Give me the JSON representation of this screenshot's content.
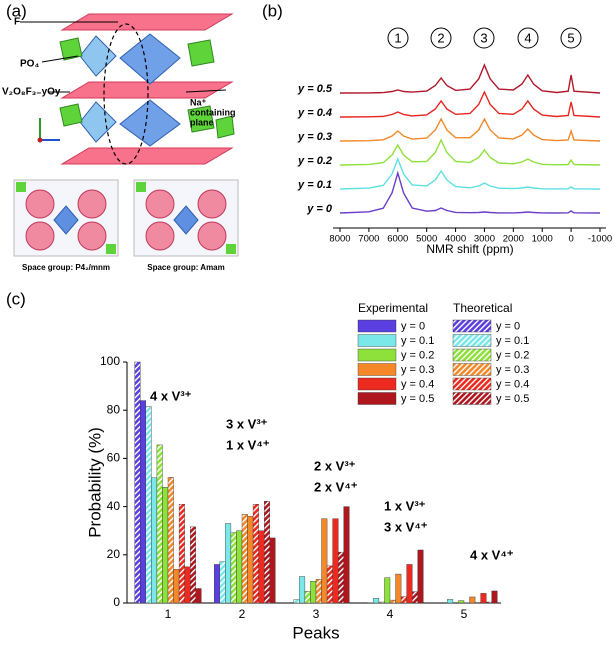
{
  "panel_a": {
    "panel_label": "(a)",
    "label_f": "F",
    "label_po4": "PO₄",
    "label_v": "V₂O₈F₃₋yOy",
    "label_na": [
      "Na⁺",
      "containing",
      "plane"
    ],
    "space_group_1": "Space group: P4₂/mnm",
    "space_group_2": "Space group: Amam"
  },
  "chart_data": [
    {
      "type": "line",
      "panel_label": "(b)",
      "xlabel": "NMR shift (ppm)",
      "peak_labels": [
        "1",
        "2",
        "3",
        "4",
        "5"
      ],
      "xlim": [
        8000,
        -1000
      ],
      "xticks": [
        8000,
        7000,
        6000,
        5000,
        4000,
        3000,
        2000,
        1000,
        0,
        -1000
      ],
      "x": [
        8000,
        7000,
        6500,
        6200,
        6000,
        5800,
        5500,
        5000,
        4700,
        4500,
        4300,
        4000,
        3500,
        3200,
        3000,
        2800,
        2500,
        2000,
        1700,
        1500,
        1300,
        1000,
        500,
        100,
        0,
        -100,
        -1000
      ],
      "series": [
        {
          "name": "y = 0",
          "color": "#6a3fc8",
          "values": [
            0,
            0.12,
            0.48,
            2.0,
            4.0,
            2.0,
            0.5,
            0.18,
            0.25,
            0.5,
            0.25,
            0.06,
            0.03,
            0.05,
            0.1,
            0.05,
            0.01,
            0.01,
            0.05,
            0.1,
            0.05,
            0.01,
            0,
            0.02,
            0.2,
            0.02,
            0
          ]
        },
        {
          "name": "y = 0.1",
          "color": "#5ee0e0",
          "values": [
            0,
            0.09,
            0.36,
            1.5,
            3.0,
            1.5,
            0.41,
            0.31,
            0.9,
            1.8,
            0.9,
            0.24,
            0.12,
            0.3,
            0.6,
            0.3,
            0.08,
            0.04,
            0.1,
            0.2,
            0.1,
            0.02,
            0.01,
            0.02,
            0.2,
            0.02,
            0
          ]
        },
        {
          "name": "y = 0.2",
          "color": "#8ee03a",
          "values": [
            0,
            0.06,
            0.24,
            1.0,
            2.0,
            1.0,
            0.32,
            0.36,
            1.25,
            2.5,
            1.25,
            0.35,
            0.26,
            0.75,
            1.5,
            0.75,
            0.2,
            0.12,
            0.3,
            0.6,
            0.3,
            0.07,
            0.02,
            0.05,
            0.5,
            0.05,
            0
          ]
        },
        {
          "name": "y = 0.3",
          "color": "#f0892a",
          "values": [
            0,
            0.03,
            0.12,
            0.5,
            1.0,
            0.5,
            0.19,
            0.29,
            1.1,
            2.2,
            1.1,
            0.33,
            0.33,
            1.1,
            2.2,
            1.1,
            0.3,
            0.21,
            0.6,
            1.2,
            0.6,
            0.14,
            0.04,
            0.1,
            1.0,
            0.1,
            0
          ]
        },
        {
          "name": "y = 0.4",
          "color": "#e8241f",
          "values": [
            0,
            0.02,
            0.06,
            0.25,
            0.5,
            0.25,
            0.11,
            0.21,
            0.8,
            1.6,
            0.8,
            0.27,
            0.35,
            1.25,
            2.5,
            1.25,
            0.35,
            0.27,
            0.8,
            1.6,
            0.8,
            0.19,
            0.05,
            0.15,
            1.5,
            0.15,
            0
          ]
        },
        {
          "name": "y = 0.5",
          "color": "#b2182b",
          "values": [
            0,
            0.01,
            0.04,
            0.15,
            0.3,
            0.15,
            0.09,
            0.19,
            0.75,
            1.5,
            0.75,
            0.26,
            0.39,
            1.4,
            2.8,
            1.4,
            0.39,
            0.3,
            0.9,
            1.8,
            0.9,
            0.22,
            0.05,
            0.18,
            1.8,
            0.18,
            0
          ]
        }
      ]
    },
    {
      "type": "bar",
      "panel_label": "(c)",
      "xlabel": "Peaks",
      "ylabel": "Probability (%)",
      "categories": [
        "1",
        "2",
        "3",
        "4",
        "5"
      ],
      "ylim": [
        0,
        100
      ],
      "yticks": [
        0,
        20,
        40,
        60,
        80,
        100
      ],
      "legend": "upper right",
      "legend_titles": [
        "Experimental",
        "Theoretical"
      ],
      "annotations": [
        [
          "4 x V³⁺"
        ],
        [
          "3 x V³⁺",
          "1 x V⁴⁺"
        ],
        [
          "2 x V³⁺",
          "2 x V⁴⁺"
        ],
        [
          "1 x V³⁺",
          "3 x V⁴⁺"
        ],
        [
          "4 x V⁴⁺"
        ]
      ],
      "series": [
        {
          "name": "y = 0",
          "color": "#5b3fe0",
          "hatch": false,
          "values": [
            84,
            16,
            0,
            0,
            0
          ]
        },
        {
          "name": "y = 0.1",
          "color": "#7ae8e8",
          "hatch": false,
          "values": [
            52,
            33,
            11,
            2,
            1.5
          ]
        },
        {
          "name": "y = 0.2",
          "color": "#8ee03a",
          "hatch": false,
          "values": [
            48,
            30,
            9,
            10.5,
            1
          ]
        },
        {
          "name": "y = 0.3",
          "color": "#f5892a",
          "hatch": false,
          "values": [
            14,
            36,
            35,
            12,
            2.5
          ]
        },
        {
          "name": "y = 0.4",
          "color": "#ec2a1f",
          "hatch": false,
          "values": [
            15,
            30,
            35,
            16,
            4
          ]
        },
        {
          "name": "y = 0.5",
          "color": "#b0161e",
          "hatch": false,
          "values": [
            6,
            27,
            40,
            22,
            5
          ]
        },
        {
          "name": "y = 0",
          "color": "#5b3fe0",
          "hatch": true,
          "values": [
            100,
            0,
            0,
            0,
            0
          ]
        },
        {
          "name": "y = 0.1",
          "color": "#7ae8e8",
          "hatch": true,
          "values": [
            81.5,
            17.1,
            1.4,
            0.1,
            0
          ]
        },
        {
          "name": "y = 0.2",
          "color": "#8ee03a",
          "hatch": true,
          "values": [
            65.6,
            29.2,
            4.9,
            0.4,
            0
          ]
        },
        {
          "name": "y = 0.3",
          "color": "#f5892a",
          "hatch": true,
          "values": [
            52.2,
            36.8,
            9.8,
            1.2,
            0.1
          ]
        },
        {
          "name": "y = 0.4",
          "color": "#ec2a1f",
          "hatch": true,
          "values": [
            41,
            41,
            15.4,
            2.6,
            0.2
          ]
        },
        {
          "name": "y = 0.5",
          "color": "#b0161e",
          "hatch": true,
          "values": [
            31.6,
            42.2,
            21.1,
            4.7,
            0.4
          ]
        }
      ]
    }
  ]
}
